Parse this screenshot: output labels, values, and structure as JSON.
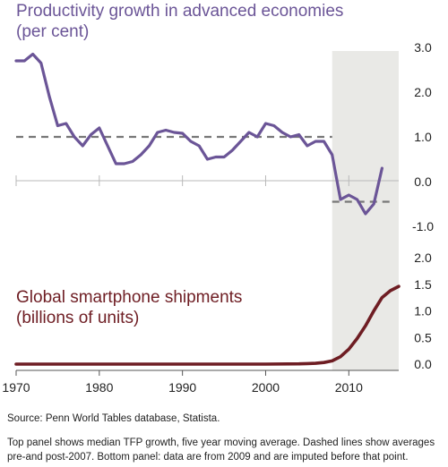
{
  "chart_data": [
    {
      "type": "line",
      "title": "Productivity growth in advanced economies",
      "subtitle": "(per cent)",
      "color": "#6b5597",
      "ylim": [
        -1.0,
        3.0
      ],
      "yticks": [
        "3.0",
        "2.0",
        "1.0",
        "0.0",
        "-1.0"
      ],
      "xlim": [
        1970,
        2016
      ],
      "shaded_region": [
        2008,
        2016
      ],
      "series": [
        {
          "x": [
            1970,
            1971,
            1972,
            1973,
            1974,
            1975,
            1976,
            1977,
            1978,
            1979,
            1980,
            1981,
            1982,
            1983,
            1984,
            1985,
            1986,
            1987,
            1988,
            1989,
            1990,
            1991,
            1992,
            1993,
            1994,
            1995,
            1996,
            1997,
            1998,
            1999,
            2000,
            2001,
            2002,
            2003,
            2004,
            2005,
            2006,
            2007,
            2008,
            2009,
            2010,
            2011,
            2012,
            2013,
            2014
          ],
          "values": [
            2.7,
            2.7,
            2.85,
            2.65,
            1.9,
            1.25,
            1.3,
            1.0,
            0.8,
            1.05,
            1.2,
            0.8,
            0.4,
            0.4,
            0.45,
            0.6,
            0.8,
            1.1,
            1.15,
            1.1,
            1.08,
            0.9,
            0.8,
            0.5,
            0.55,
            0.55,
            0.7,
            0.9,
            1.1,
            1.0,
            1.3,
            1.25,
            1.1,
            1.0,
            1.05,
            0.8,
            0.9,
            0.9,
            0.6,
            -0.4,
            -0.3,
            -0.4,
            -0.72,
            -0.5,
            0.3
          ]
        }
      ],
      "averages": [
        {
          "x": [
            1970,
            2008
          ],
          "value": 1.0
        },
        {
          "x": [
            2008,
            2015
          ],
          "value": -0.45
        }
      ]
    },
    {
      "type": "line",
      "title": "Global smartphone shipments",
      "subtitle": "(billions of units)",
      "color": "#6e1d23",
      "ylim": [
        0.0,
        2.0
      ],
      "yticks": [
        "2.0",
        "1.5",
        "1.0",
        "0.5",
        "0.0"
      ],
      "xlim": [
        1970,
        2016
      ],
      "xticks": [
        "1970",
        "1980",
        "1990",
        "2000",
        "2010"
      ],
      "series": [
        {
          "x": [
            1970,
            2000,
            2004,
            2005,
            2006,
            2007,
            2008,
            2009,
            2010,
            2011,
            2012,
            2013,
            2014,
            2015,
            2016
          ],
          "values": [
            0.0,
            0.0,
            0.005,
            0.01,
            0.015,
            0.03,
            0.06,
            0.14,
            0.28,
            0.48,
            0.72,
            1.0,
            1.25,
            1.38,
            1.46
          ]
        }
      ]
    }
  ],
  "notes": {
    "source": "Source:  Penn World Tables database, Statista.",
    "line1": "Top panel shows median TFP growth, five year moving average.  Dashed lines show averages",
    "line2": "pre-and post-2007.  Bottom panel:  data are from 2009 and are imputed before that point."
  }
}
